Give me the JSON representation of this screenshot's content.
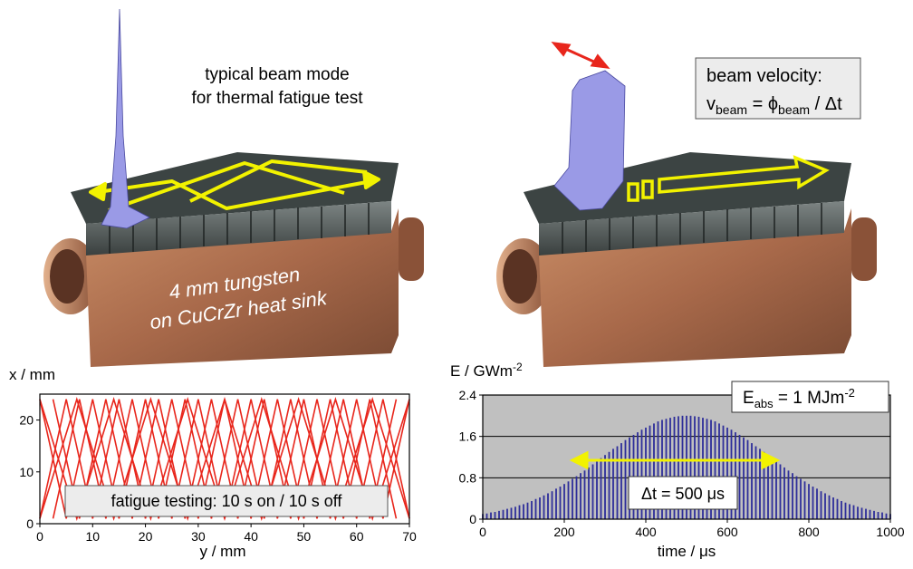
{
  "illustrations": {
    "left": {
      "caption": [
        "typical beam mode",
        "for thermal fatigue test"
      ],
      "label": [
        "4 mm tungsten",
        "on CuCrZr heat sink"
      ]
    },
    "right": {
      "box_title": "beam velocity:",
      "formula": {
        "v": "v",
        "v_sub": "beam",
        "eq": " = ϕ",
        "phi_sub": "beam",
        "rest": " / Δt"
      }
    }
  },
  "chart_data": [
    {
      "type": "line",
      "xlabel": "y / mm",
      "ylabel": "x / mm",
      "xlim": [
        0,
        70
      ],
      "ylim": [
        0,
        25
      ],
      "xticks": [
        0,
        10,
        20,
        30,
        40,
        50,
        60,
        70
      ],
      "yticks": [
        0,
        10,
        20
      ],
      "annotation": "fatigue testing: 10 s on / 10 s off",
      "series": [
        {
          "color": "#e8261c",
          "x": [
            0,
            5,
            10,
            15,
            20,
            25,
            30,
            35,
            40,
            45,
            50,
            55,
            60,
            65,
            70
          ],
          "values": [
            1,
            24,
            1,
            24,
            1,
            24,
            1,
            24,
            1,
            24,
            1,
            24,
            1,
            24,
            1
          ]
        },
        {
          "color": "#e8261c",
          "x": [
            0,
            5,
            10,
            15,
            20,
            25,
            30,
            35,
            40,
            45,
            50,
            55,
            60,
            65,
            70
          ],
          "values": [
            24,
            1,
            24,
            1,
            24,
            1,
            24,
            1,
            24,
            1,
            24,
            1,
            24,
            1,
            24
          ]
        },
        {
          "color": "#e8261c",
          "x": [
            0,
            7,
            14,
            21,
            28,
            35,
            42,
            49,
            56,
            63,
            70
          ],
          "values": [
            1,
            24,
            1,
            24,
            1,
            24,
            1,
            24,
            1,
            24,
            1
          ]
        },
        {
          "color": "#e8261c",
          "x": [
            0,
            7,
            14,
            21,
            28,
            35,
            42,
            49,
            56,
            63,
            70
          ],
          "values": [
            24,
            1,
            24,
            1,
            24,
            1,
            24,
            1,
            24,
            1,
            24
          ]
        },
        {
          "color": "#e8261c",
          "x": [
            2.5,
            7.5,
            12.5,
            17.5,
            22.5,
            27.5,
            32.5,
            37.5,
            42.5,
            47.5,
            52.5,
            57.5,
            62.5,
            67.5
          ],
          "values": [
            1,
            24,
            1,
            24,
            1,
            24,
            1,
            24,
            1,
            24,
            1,
            24,
            1,
            24
          ]
        },
        {
          "color": "#e8261c",
          "x": [
            2.5,
            7.5,
            12.5,
            17.5,
            22.5,
            27.5,
            32.5,
            37.5,
            42.5,
            47.5,
            52.5,
            57.5,
            62.5,
            67.5
          ],
          "values": [
            24,
            1,
            24,
            1,
            24,
            1,
            24,
            1,
            24,
            1,
            24,
            1,
            24,
            1
          ]
        }
      ]
    },
    {
      "type": "bar",
      "xlabel": "time / μs",
      "ylabel": {
        "text": "E / GWm",
        "sup": "-2"
      },
      "xlim": [
        0,
        1000
      ],
      "ylim": [
        0,
        2.4
      ],
      "xticks": [
        0,
        200,
        400,
        600,
        800,
        1000
      ],
      "yticks": [
        0,
        0.8,
        1.6,
        2.4
      ],
      "grid": true,
      "background": "#c0c0c0",
      "color": "#2e2e9a",
      "energy": {
        "main": "E",
        "sub": "abs",
        "rest": " = 1 MJm",
        "sup": "-2"
      },
      "annotation": "Δt = 500 μs",
      "x": [
        0,
        10,
        20,
        30,
        40,
        50,
        60,
        70,
        80,
        90,
        100,
        110,
        120,
        130,
        140,
        150,
        160,
        170,
        180,
        190,
        200,
        210,
        220,
        230,
        240,
        250,
        260,
        270,
        280,
        290,
        300,
        310,
        320,
        330,
        340,
        350,
        360,
        370,
        380,
        390,
        400,
        410,
        420,
        430,
        440,
        450,
        460,
        470,
        480,
        490,
        500,
        510,
        520,
        530,
        540,
        550,
        560,
        570,
        580,
        590,
        600,
        610,
        620,
        630,
        640,
        650,
        660,
        670,
        680,
        690,
        700,
        710,
        720,
        730,
        740,
        750,
        760,
        770,
        780,
        790,
        800,
        810,
        820,
        830,
        840,
        850,
        860,
        870,
        880,
        890,
        900,
        910,
        920,
        930,
        940,
        950,
        960,
        970,
        980,
        990,
        1000
      ],
      "values": [
        0.1,
        0.11,
        0.13,
        0.14,
        0.16,
        0.18,
        0.2,
        0.22,
        0.24,
        0.27,
        0.29,
        0.32,
        0.35,
        0.39,
        0.42,
        0.46,
        0.5,
        0.54,
        0.59,
        0.63,
        0.68,
        0.73,
        0.78,
        0.83,
        0.89,
        0.94,
        1.0,
        1.06,
        1.12,
        1.18,
        1.24,
        1.3,
        1.36,
        1.41,
        1.47,
        1.53,
        1.58,
        1.63,
        1.68,
        1.73,
        1.77,
        1.81,
        1.85,
        1.89,
        1.92,
        1.94,
        1.96,
        1.98,
        1.99,
        2.0,
        2.0,
        2.0,
        1.99,
        1.98,
        1.96,
        1.94,
        1.92,
        1.89,
        1.85,
        1.81,
        1.77,
        1.73,
        1.68,
        1.63,
        1.58,
        1.53,
        1.47,
        1.41,
        1.36,
        1.3,
        1.24,
        1.18,
        1.12,
        1.06,
        1.0,
        0.94,
        0.89,
        0.83,
        0.78,
        0.73,
        0.68,
        0.63,
        0.59,
        0.54,
        0.5,
        0.46,
        0.42,
        0.39,
        0.35,
        0.32,
        0.29,
        0.27,
        0.24,
        0.22,
        0.2,
        0.18,
        0.16,
        0.14,
        0.13,
        0.11,
        0.1
      ]
    }
  ]
}
